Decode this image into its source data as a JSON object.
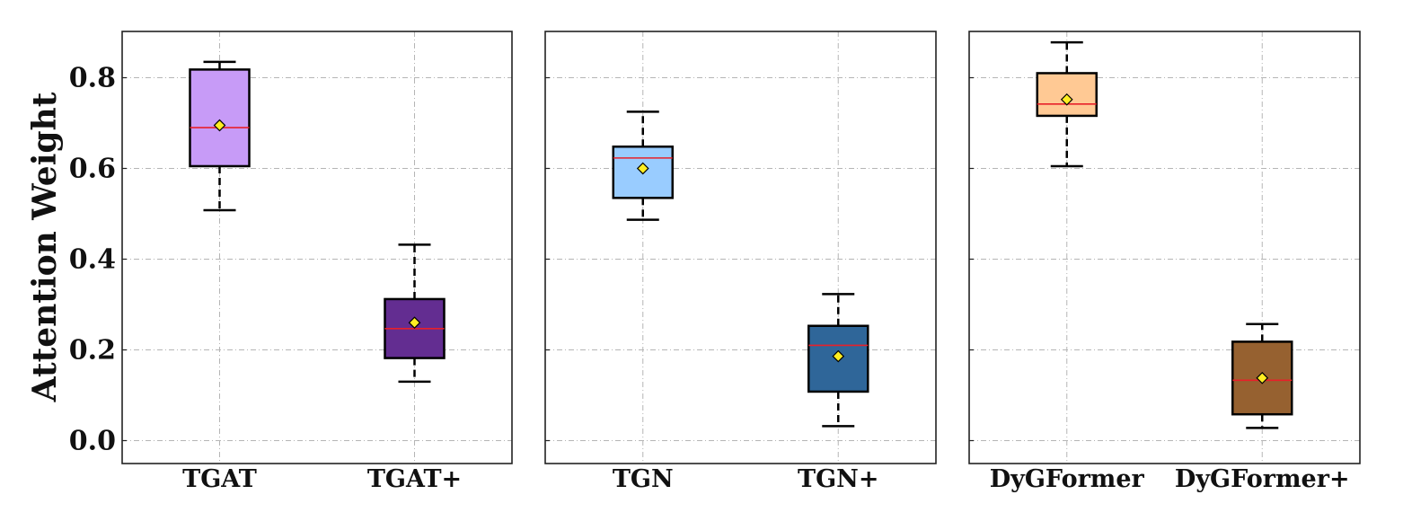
{
  "chart_data": {
    "type": "box",
    "ylabel": "Attention Weight",
    "ylim": [
      -0.05,
      0.9
    ],
    "yticks": [
      0.0,
      0.2,
      0.4,
      0.6,
      0.8
    ],
    "ytick_labels": [
      "0.0",
      "0.2",
      "0.4",
      "0.6",
      "0.8"
    ],
    "grid": true,
    "median_color": "#e8202a",
    "mean_marker_color": "#ffee22",
    "panels": [
      {
        "boxes": [
          {
            "label": "TGAT",
            "color": "#c79bf7",
            "whisker_low": 0.508,
            "q1": 0.605,
            "median": 0.69,
            "q3": 0.818,
            "whisker_high": 0.835,
            "mean": 0.695
          },
          {
            "label": "TGAT+",
            "color": "#632d91",
            "whisker_low": 0.13,
            "q1": 0.182,
            "median": 0.247,
            "q3": 0.312,
            "whisker_high": 0.432,
            "mean": 0.26
          }
        ]
      },
      {
        "boxes": [
          {
            "label": "TGN",
            "color": "#99ccff",
            "whisker_low": 0.487,
            "q1": 0.535,
            "median": 0.623,
            "q3": 0.648,
            "whisker_high": 0.725,
            "mean": 0.6
          },
          {
            "label": "TGN+",
            "color": "#2f6699",
            "whisker_low": 0.032,
            "q1": 0.108,
            "median": 0.21,
            "q3": 0.253,
            "whisker_high": 0.323,
            "mean": 0.186
          }
        ]
      },
      {
        "boxes": [
          {
            "label": "DyGFormer",
            "color": "#ffc994",
            "whisker_low": 0.605,
            "q1": 0.716,
            "median": 0.742,
            "q3": 0.81,
            "whisker_high": 0.878,
            "mean": 0.752
          },
          {
            "label": "DyGFormer+",
            "color": "#966130",
            "whisker_low": 0.028,
            "q1": 0.058,
            "median": 0.133,
            "q3": 0.218,
            "whisker_high": 0.257,
            "mean": 0.138
          }
        ]
      }
    ]
  }
}
